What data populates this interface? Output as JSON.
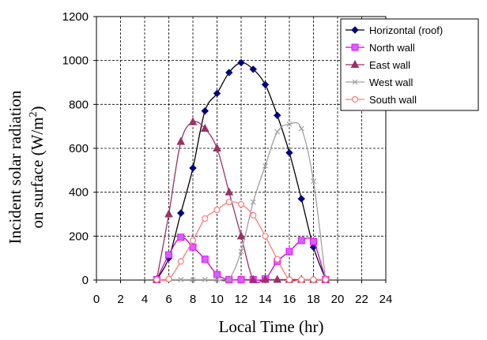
{
  "chart_data": {
    "type": "line",
    "xlabel": "Local Time (hr)",
    "ylabel_line1": "Incident solar radiation",
    "ylabel_line2_prefix": "on surface (W/m",
    "ylabel_sup": "2",
    "ylabel_line2_suffix": ")",
    "xlim": [
      0,
      24
    ],
    "ylim": [
      0,
      1200
    ],
    "xticks": [
      0,
      2,
      4,
      6,
      8,
      10,
      12,
      14,
      16,
      18,
      20,
      22,
      24
    ],
    "yticks": [
      0,
      200,
      400,
      600,
      800,
      1000,
      1200
    ],
    "grid": "dashed",
    "legend_position": "top-right",
    "x": [
      5,
      6,
      7,
      8,
      9,
      10,
      11,
      12,
      13,
      14,
      15,
      16,
      17,
      18,
      19
    ],
    "series": [
      {
        "name": "Horizontal (roof)",
        "color": "#000000",
        "marker": "diamond",
        "values": [
          2,
          100,
          305,
          510,
          770,
          850,
          945,
          990,
          960,
          890,
          750,
          580,
          370,
          150,
          5
        ]
      },
      {
        "name": "North wall",
        "color": "#cc00cc",
        "marker": "square",
        "values": [
          2,
          115,
          195,
          150,
          95,
          25,
          2,
          2,
          2,
          5,
          85,
          130,
          180,
          175,
          2
        ]
      },
      {
        "name": "East wall",
        "color": "#993366",
        "marker": "triangle",
        "values": [
          2,
          300,
          630,
          720,
          690,
          600,
          400,
          200,
          2,
          2,
          2,
          2,
          2,
          2,
          2
        ]
      },
      {
        "name": "West wall",
        "color": "#a0a0a0",
        "marker": "x",
        "values": [
          2,
          2,
          2,
          2,
          2,
          2,
          5,
          130,
          355,
          520,
          675,
          710,
          690,
          450,
          5
        ]
      },
      {
        "name": "South wall",
        "color": "#ff7b7b",
        "marker": "circle",
        "values": [
          2,
          5,
          85,
          180,
          280,
          320,
          355,
          345,
          295,
          200,
          95,
          2,
          2,
          2,
          2
        ]
      }
    ]
  }
}
